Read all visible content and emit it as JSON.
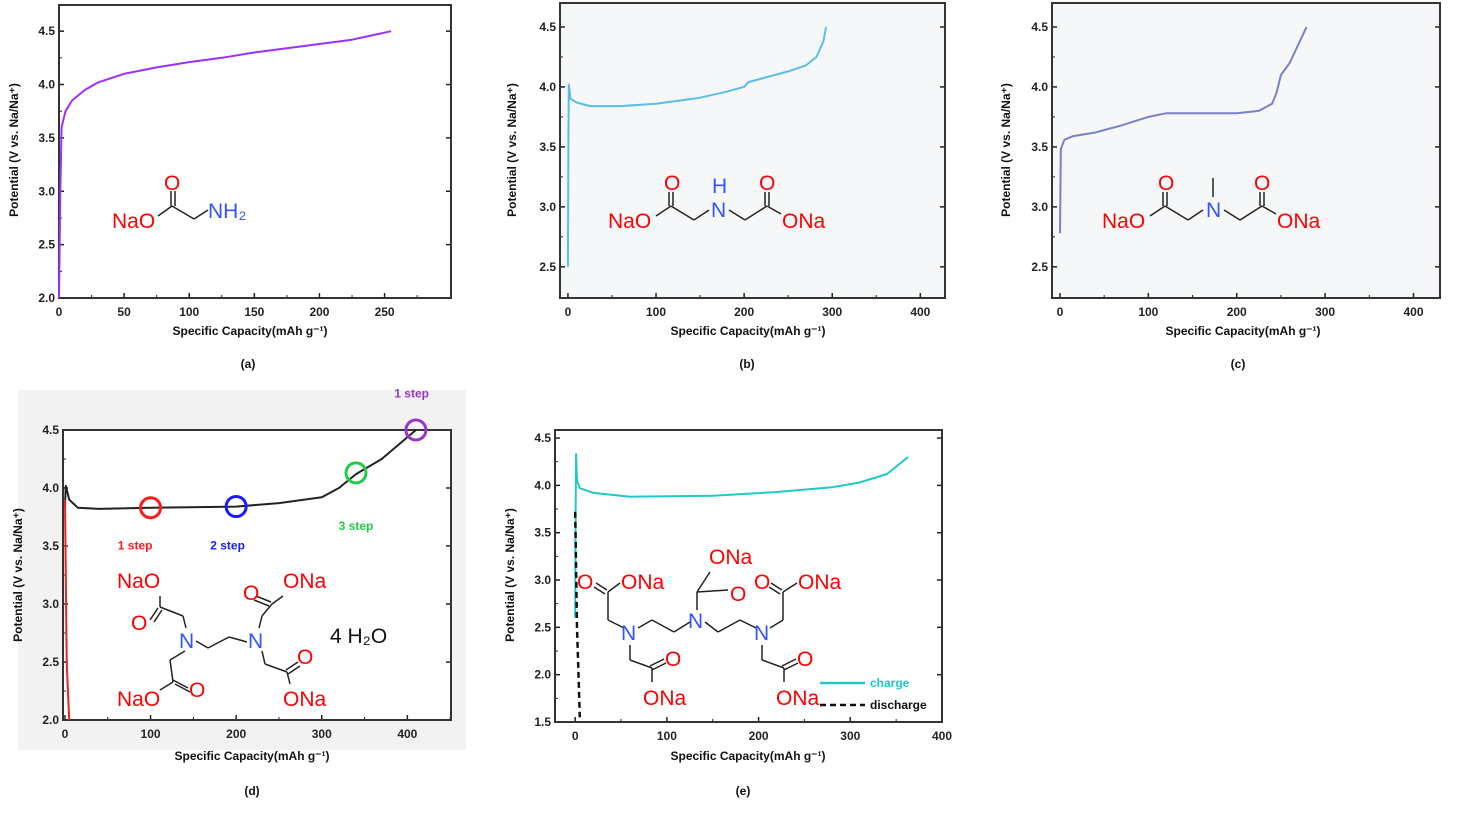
{
  "chart_data": [
    {
      "type": "line",
      "panel_label": "(a)",
      "xlabel": "Specific Capacity(mAh g⁻¹)",
      "ylabel": "Potential  (V vs. Na/Na⁺)",
      "xlim": [
        0,
        301
      ],
      "ylim": [
        2.0,
        4.745
      ],
      "xticks": [
        "0",
        "50",
        "100",
        "150",
        "200",
        "250"
      ],
      "yticks": [
        "2.0",
        "2.5",
        "3.0",
        "3.5",
        "4.0",
        "4.5"
      ],
      "background": "#ffffff",
      "series": [
        {
          "name": "charge",
          "color": "#9b30ff",
          "dash": false,
          "points": [
            [
              0,
              2.0
            ],
            [
              1,
              3.0
            ],
            [
              2,
              3.6
            ],
            [
              5,
              3.75
            ],
            [
              10,
              3.85
            ],
            [
              20,
              3.95
            ],
            [
              30,
              4.02
            ],
            [
              50,
              4.1
            ],
            [
              75,
              4.16
            ],
            [
              100,
              4.21
            ],
            [
              125,
              4.25
            ],
            [
              150,
              4.3
            ],
            [
              175,
              4.34
            ],
            [
              200,
              4.38
            ],
            [
              225,
              4.42
            ],
            [
              255,
              4.5
            ]
          ]
        }
      ],
      "annotations": [],
      "molecule": [
        {
          "text": "NaO",
          "color": "#ff0000"
        },
        {
          "text": "O",
          "color": "#ff0000"
        },
        {
          "text": "NH₂",
          "color": "#3355ff"
        }
      ],
      "legend": false
    },
    {
      "type": "line",
      "panel_label": "(b)",
      "xlabel": "Specific Capacity(mAh g⁻¹)",
      "ylabel": "Potential  (V vs. Na/Na⁺)",
      "xlim": [
        -9,
        428
      ],
      "ylim": [
        2.24,
        4.7
      ],
      "xticks": [
        "0",
        "100",
        "200",
        "300",
        "400"
      ],
      "yticks": [
        "2.5",
        "3.0",
        "3.5",
        "4.0",
        "4.5"
      ],
      "background": "#f5f7f9",
      "series": [
        {
          "name": "charge",
          "color": "#5bbde8",
          "dash": false,
          "points": [
            [
              0,
              2.5
            ],
            [
              0.5,
              3.5
            ],
            [
              1,
              4.02
            ],
            [
              3,
              3.9
            ],
            [
              10,
              3.87
            ],
            [
              25,
              3.84
            ],
            [
              60,
              3.84
            ],
            [
              100,
              3.86
            ],
            [
              150,
              3.91
            ],
            [
              180,
              3.96
            ],
            [
              200,
              4.0
            ],
            [
              205,
              4.04
            ],
            [
              220,
              4.07
            ],
            [
              250,
              4.13
            ],
            [
              270,
              4.18
            ],
            [
              282,
              4.25
            ],
            [
              290,
              4.38
            ],
            [
              293,
              4.5
            ]
          ]
        }
      ],
      "annotations": [],
      "molecule": [
        {
          "text": "NaO",
          "color": "#ff0000"
        },
        {
          "text": "O",
          "color": "#ff0000"
        },
        {
          "text": "H",
          "color": "#3355ff"
        },
        {
          "text": "N",
          "color": "#3355ff"
        },
        {
          "text": "O",
          "color": "#ff0000"
        },
        {
          "text": "ONa",
          "color": "#ff0000"
        }
      ],
      "legend": false
    },
    {
      "type": "line",
      "panel_label": "(c)",
      "xlabel": "Specific Capacity(mAh g⁻¹)",
      "ylabel": "Potential  (V vs. Na/Na⁺)",
      "xlim": [
        -9,
        430
      ],
      "ylim": [
        2.24,
        4.7
      ],
      "xticks": [
        "0",
        "100",
        "200",
        "300",
        "400"
      ],
      "yticks": [
        "2.5",
        "3.0",
        "3.5",
        "4.0",
        "4.5"
      ],
      "background": "#f5f7f9",
      "series": [
        {
          "name": "charge",
          "color": "#7b80c8",
          "dash": false,
          "points": [
            [
              0,
              2.78
            ],
            [
              1,
              3.48
            ],
            [
              5,
              3.56
            ],
            [
              15,
              3.59
            ],
            [
              40,
              3.62
            ],
            [
              70,
              3.68
            ],
            [
              100,
              3.75
            ],
            [
              120,
              3.78
            ],
            [
              200,
              3.78
            ],
            [
              225,
              3.8
            ],
            [
              240,
              3.86
            ],
            [
              245,
              3.95
            ],
            [
              250,
              4.1
            ],
            [
              260,
              4.2
            ],
            [
              279,
              4.5
            ]
          ]
        }
      ],
      "annotations": [],
      "molecule": [
        {
          "text": "NaO",
          "color": "#ff0000"
        },
        {
          "text": "O",
          "color": "#ff0000"
        },
        {
          "text": "N",
          "color": "#3355ff"
        },
        {
          "text": "O",
          "color": "#ff0000"
        },
        {
          "text": "ONa",
          "color": "#ff0000"
        }
      ],
      "legend": false
    },
    {
      "type": "line",
      "panel_label": "(d)",
      "xlabel": "Specific Capacity(mAh g⁻¹)",
      "ylabel": "Potential  (V vs. Na/Na⁺)",
      "xlim": [
        -2.3,
        451
      ],
      "ylim": [
        2.0,
        4.5
      ],
      "xticks": [
        "0",
        "100",
        "200",
        "300",
        "400"
      ],
      "yticks": [
        "2.0",
        "2.5",
        "3.0",
        "3.5",
        "4.0",
        "4.5"
      ],
      "background": "#ffffff",
      "series": [
        {
          "name": "charge",
          "color": "#222222",
          "dash": false,
          "points": [
            [
              0,
              3.85
            ],
            [
              1,
              4.02
            ],
            [
              5,
              3.9
            ],
            [
              15,
              3.83
            ],
            [
              40,
              3.82
            ],
            [
              100,
              3.83
            ],
            [
              200,
              3.84
            ],
            [
              250,
              3.87
            ],
            [
              300,
              3.92
            ],
            [
              320,
              4.0
            ],
            [
              340,
              4.12
            ],
            [
              370,
              4.25
            ],
            [
              410,
              4.5
            ]
          ]
        },
        {
          "name": "initial",
          "color": "#ee2222",
          "dash": false,
          "points": [
            [
              0,
              3.9
            ],
            [
              2,
              2.5
            ],
            [
              5,
              2.0
            ]
          ]
        }
      ],
      "annotations": [
        {
          "text": "1 step",
          "color": "#ff1a1a",
          "x": 100,
          "y": 3.83,
          "label_x": 82,
          "label_y": 3.47
        },
        {
          "text": "2 step",
          "color": "#1a1aff",
          "x": 200,
          "y": 3.84,
          "label_x": 190,
          "label_y": 3.47
        },
        {
          "text": "3 step",
          "color": "#22cc44",
          "x": 340,
          "y": 4.13,
          "label_x": 340,
          "label_y": 3.64
        },
        {
          "text": "1 step",
          "color": "#9933cc",
          "x": 410,
          "y": 4.5,
          "label_x": 405,
          "label_y": 4.78
        }
      ],
      "molecule": [
        {
          "text": "NaO",
          "color": "#ff0000"
        },
        {
          "text": "O",
          "color": "#ff0000"
        },
        {
          "text": "N",
          "color": "#3355ff"
        },
        {
          "text": "N",
          "color": "#3355ff"
        },
        {
          "text": "O",
          "color": "#ff0000"
        },
        {
          "text": "ONa",
          "color": "#ff0000"
        },
        {
          "text": "O",
          "color": "#ff0000"
        },
        {
          "text": "ONa",
          "color": "#ff0000"
        },
        {
          "text": "NaO",
          "color": "#ff0000"
        },
        {
          "text": "O",
          "color": "#ff0000"
        },
        {
          "text": "4 H₂O",
          "color": "#111111"
        }
      ],
      "legend": false
    },
    {
      "type": "line",
      "panel_label": "(e)",
      "xlabel": "Specific Capacity(mAh g⁻¹)",
      "ylabel": "Potential  (V vs. Na/Na⁺)",
      "xlim": [
        -22,
        400
      ],
      "ylim": [
        1.5,
        4.585
      ],
      "xticks": [
        "0",
        "100",
        "200",
        "300",
        "400"
      ],
      "yticks": [
        "1.5",
        "2.0",
        "2.5",
        "3.0",
        "3.5",
        "4.0",
        "4.5"
      ],
      "background": "#ffffff",
      "series": [
        {
          "name": "charge",
          "color": "#20c8c8",
          "dash": false,
          "points": [
            [
              0,
              2.6
            ],
            [
              0.5,
              3.7
            ],
            [
              1,
              4.33
            ],
            [
              2,
              4.05
            ],
            [
              5,
              3.97
            ],
            [
              20,
              3.92
            ],
            [
              60,
              3.88
            ],
            [
              150,
              3.89
            ],
            [
              220,
              3.93
            ],
            [
              280,
              3.98
            ],
            [
              310,
              4.03
            ],
            [
              340,
              4.12
            ],
            [
              363,
              4.3
            ]
          ]
        },
        {
          "name": "discharge",
          "color": "#111111",
          "dash": true,
          "points": [
            [
              0,
              3.72
            ],
            [
              2,
              2.5
            ],
            [
              4,
              1.9
            ],
            [
              5,
              1.55
            ]
          ]
        }
      ],
      "annotations": [],
      "molecule": [
        {
          "text": "O",
          "color": "#ff0000"
        },
        {
          "text": "ONa",
          "color": "#ff0000"
        },
        {
          "text": "ONa",
          "color": "#ff0000"
        },
        {
          "text": "O",
          "color": "#ff0000"
        },
        {
          "text": "O",
          "color": "#ff0000"
        },
        {
          "text": "ONa",
          "color": "#ff0000"
        },
        {
          "text": "N",
          "color": "#3355ff"
        },
        {
          "text": "N",
          "color": "#3355ff"
        },
        {
          "text": "N",
          "color": "#3355ff"
        },
        {
          "text": "O",
          "color": "#ff0000"
        },
        {
          "text": "ONa",
          "color": "#ff0000"
        },
        {
          "text": "O",
          "color": "#ff0000"
        },
        {
          "text": "ONa",
          "color": "#ff0000"
        }
      ],
      "legend": true
    }
  ]
}
